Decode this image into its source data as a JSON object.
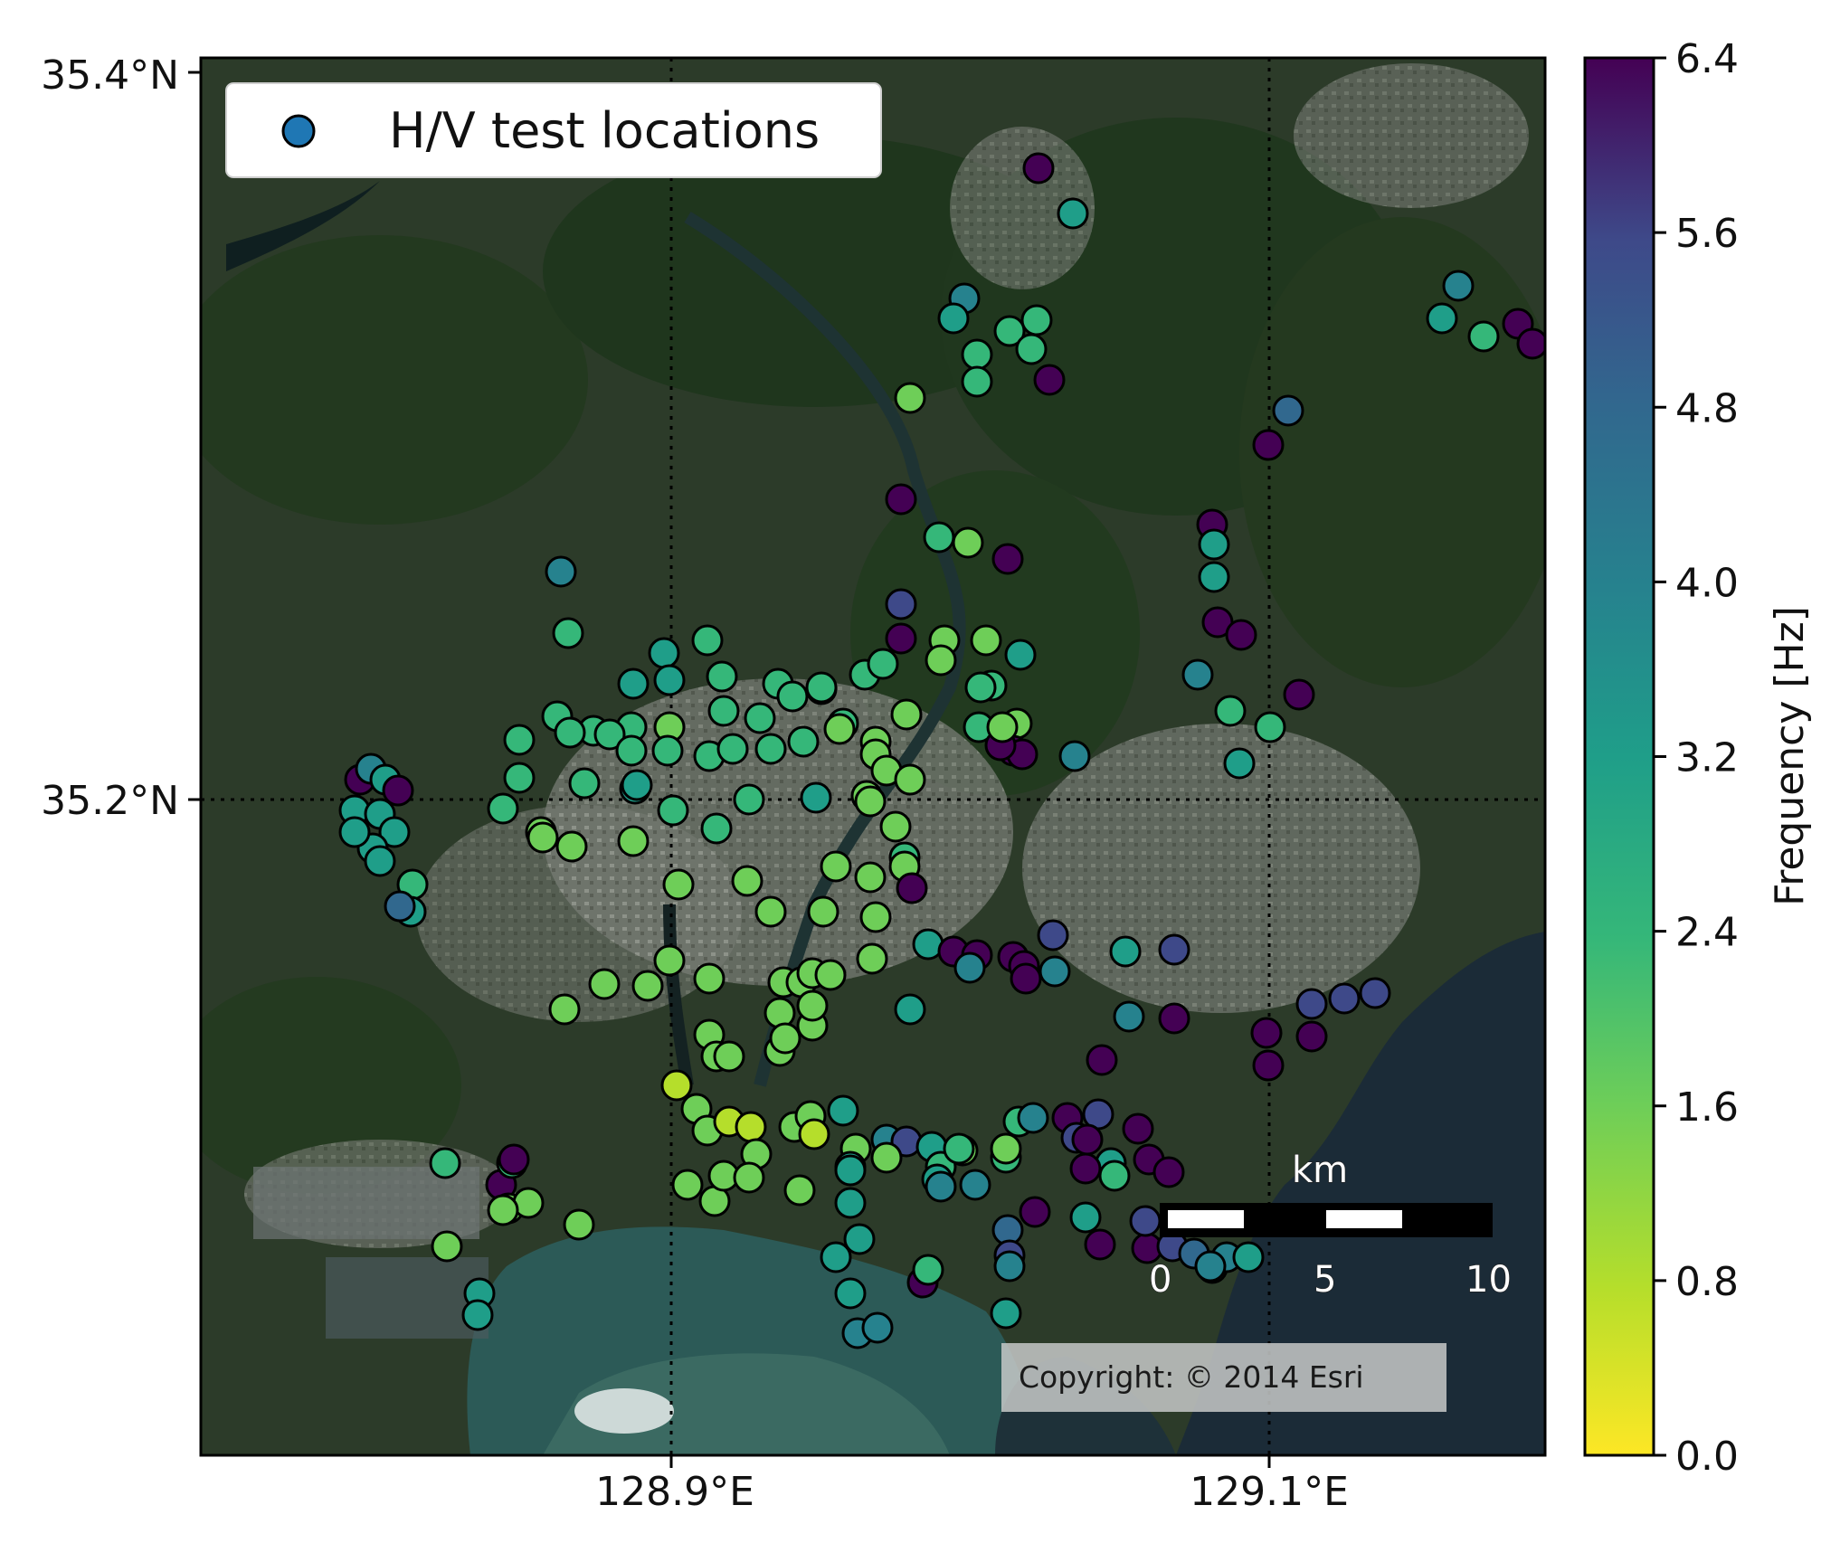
{
  "map": {
    "legend_label": "H/V test locations",
    "copyright": "Copyright: © 2014 Esri",
    "lat_labels": [
      "35.4°N",
      "35.2°N"
    ],
    "lon_labels": [
      "128.9°E",
      "129.1°E"
    ],
    "scalebar": {
      "unit": "km",
      "ticks": [
        "0",
        "5",
        "10"
      ]
    },
    "colors": {
      "land": "#2f3f2b",
      "forest": "#1f3a1f",
      "urban": "#7b7f78",
      "sea": "#1c2c38",
      "coast": "#2e6a6a"
    }
  },
  "colorbar": {
    "label": "Frequency [Hz]",
    "ticks": [
      "6.4",
      "5.6",
      "4.8",
      "4.0",
      "3.2",
      "2.4",
      "1.6",
      "0.8",
      "0.0"
    ],
    "min": 0.0,
    "max": 6.4
  }
}
